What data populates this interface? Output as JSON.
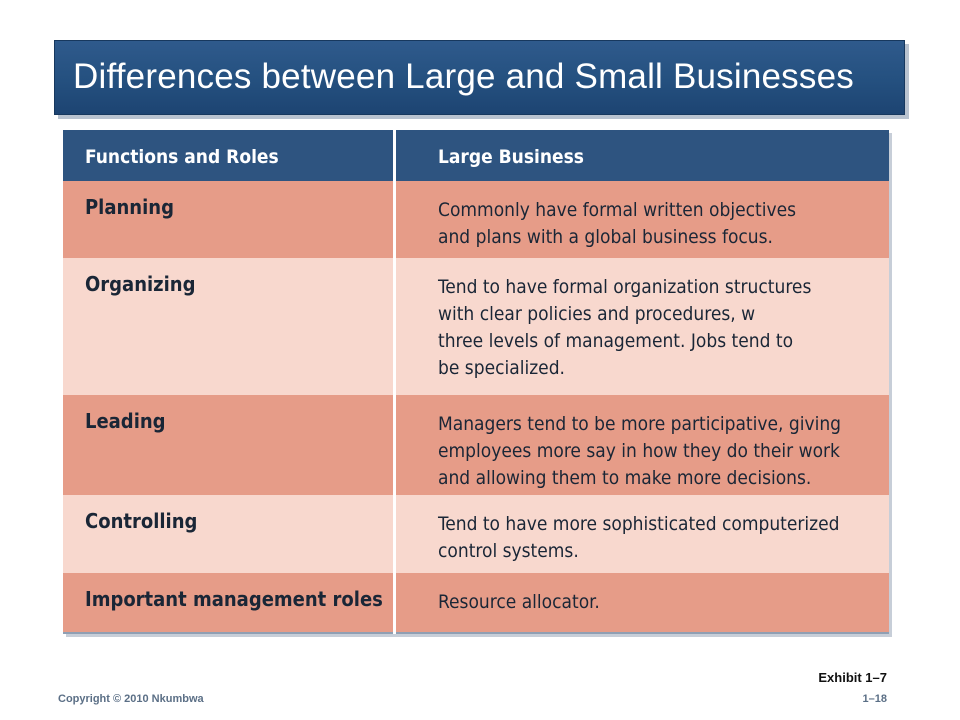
{
  "title": "Differences between Large and Small Businesses",
  "table": {
    "headers": [
      "Functions and Roles",
      "Large Business"
    ],
    "rows": [
      {
        "function": "Planning",
        "description": "Commonly have formal written objectives\nand plans with a global business focus."
      },
      {
        "function": "Organizing",
        "description": "Tend to have formal organization structures\nwith clear policies and procedures, w\nthree levels of management. Jobs tend to\nbe specialized."
      },
      {
        "function": "Leading",
        "description": "Managers tend to be more participative, giving\nemployees more say in how they do their work\nand allowing them to make more decisions."
      },
      {
        "function": "Controlling",
        "description": "Tend to have more sophisticated computerized\ncontrol systems."
      },
      {
        "function": "Important management roles",
        "description": "Resource allocator."
      }
    ]
  },
  "footer": {
    "copyright": "Copyright © 2010 Nkumbwa",
    "exhibit": "Exhibit 1–7",
    "page": "1–18"
  },
  "colors": {
    "title_bg": "#24507f",
    "header_bg": "#2e5480",
    "row_dark": "#e69c88",
    "row_light": "#f8d8ce"
  }
}
